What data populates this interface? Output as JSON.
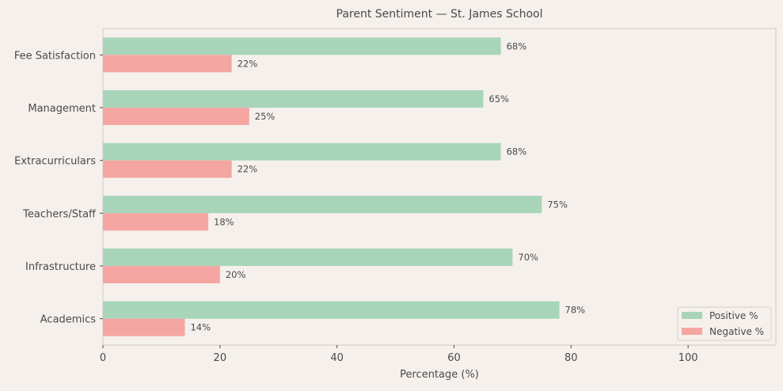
{
  "chart_data": {
    "type": "bar",
    "orientation": "horizontal",
    "title": "Parent Sentiment — St. James School",
    "xlabel": "Percentage (%)",
    "ylabel": "",
    "xlim": [
      0,
      115
    ],
    "xticks": [
      0,
      20,
      40,
      60,
      80,
      100
    ],
    "grid": false,
    "legend_position": "lower-right",
    "categories": [
      "Academics",
      "Infrastructure",
      "Teachers/Staff",
      "Extracurriculars",
      "Management",
      "Fee Satisfaction"
    ],
    "series": [
      {
        "name": "Positive %",
        "color": "#a8d5ba",
        "values": [
          78,
          70,
          75,
          68,
          65,
          68
        ]
      },
      {
        "name": "Negative %",
        "color": "#f5a6a2",
        "values": [
          14,
          20,
          18,
          22,
          25,
          22
        ]
      }
    ],
    "value_label_suffix": "%"
  }
}
